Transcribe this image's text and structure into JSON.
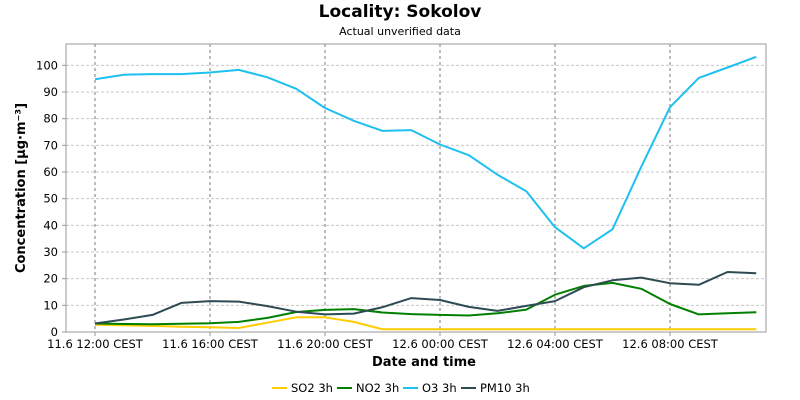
{
  "chart_data": {
    "type": "line",
    "title": "Locality: Sokolov",
    "subtitle": "Actual unverified data",
    "xlabel": "Date and time",
    "ylabel": "Concentration [µg·m⁻³]",
    "ylim": [
      0,
      108
    ],
    "yticks": [
      0,
      10,
      20,
      30,
      40,
      50,
      60,
      70,
      80,
      90,
      100
    ],
    "grid": true,
    "legend_position": "bottom",
    "x_ticks": [
      {
        "label": "11.6 12:00 CEST",
        "hour": 0
      },
      {
        "label": "11.6 16:00 CEST",
        "hour": 4
      },
      {
        "label": "11.6 20:00 CEST",
        "hour": 8
      },
      {
        "label": "12.6 00:00 CEST",
        "hour": 12
      },
      {
        "label": "12.6 04:00 CEST",
        "hour": 16
      },
      {
        "label": "12.6 08:00 CEST",
        "hour": 20
      }
    ],
    "x_hours": [
      0,
      1,
      2,
      3,
      4,
      5,
      6,
      7,
      8,
      9,
      10,
      11,
      12,
      13,
      14,
      15,
      16,
      17,
      18,
      19,
      20,
      21,
      22,
      23
    ],
    "series": [
      {
        "name": "SO2 3h",
        "color": "#ffcc00",
        "values": [
          2.7,
          2.5,
          2.3,
          2.0,
          1.8,
          1.5,
          3.5,
          5.5,
          5.5,
          3.8,
          1.0,
          1.0,
          1.0,
          1.0,
          1.0,
          1.0,
          1.0,
          1.0,
          1.0,
          1.0,
          1.0,
          1.0,
          1.0,
          1.0
        ]
      },
      {
        "name": "NO2 3h",
        "color": "#008000",
        "values": [
          3.2,
          3.0,
          2.9,
          3.1,
          3.3,
          3.8,
          5.3,
          7.5,
          8.3,
          8.6,
          7.3,
          6.7,
          6.4,
          6.2,
          7.0,
          8.4,
          14.0,
          17.3,
          18.4,
          16.2,
          10.5,
          6.6,
          7.0,
          7.4
        ]
      },
      {
        "name": "O3 3h",
        "color": "#1ec0f0",
        "values": [
          94.8,
          96.5,
          96.7,
          96.7,
          97.3,
          98.3,
          95.5,
          91.2,
          84.0,
          79.2,
          75.4,
          75.7,
          70.3,
          66.3,
          59.0,
          52.8,
          39.3,
          31.4,
          38.5,
          62.0,
          84.3,
          95.3,
          99.2,
          103.2
        ]
      },
      {
        "name": "PM10 3h",
        "color": "#2e4a52",
        "values": [
          3.2,
          4.7,
          6.4,
          10.9,
          11.6,
          11.4,
          9.7,
          7.6,
          6.6,
          6.9,
          9.3,
          12.7,
          12.0,
          9.4,
          7.9,
          9.8,
          11.6,
          16.8,
          19.4,
          20.4,
          18.3,
          17.7,
          22.5,
          22.0
        ]
      }
    ]
  }
}
